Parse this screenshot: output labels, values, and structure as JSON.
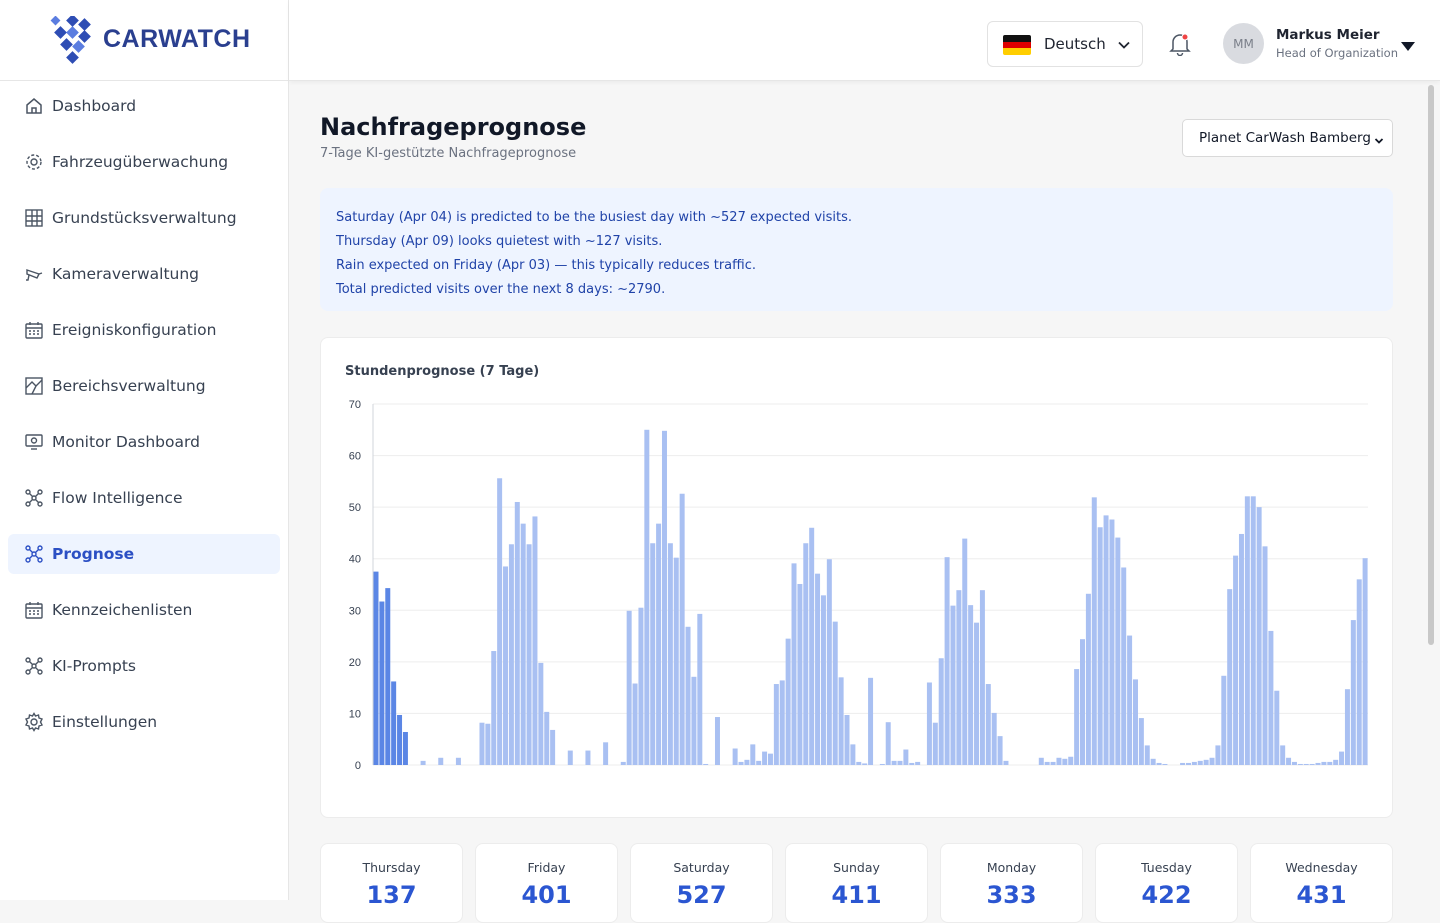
{
  "brand": {
    "name": "CARWATCH"
  },
  "sidebar": {
    "items": [
      {
        "label": "Dashboard",
        "icon": "home-icon"
      },
      {
        "label": "Fahrzeugüberwachung",
        "icon": "vehicle-monitor-icon"
      },
      {
        "label": "Grundstücksverwaltung",
        "icon": "property-grid-icon"
      },
      {
        "label": "Kameraverwaltung",
        "icon": "camera-icon"
      },
      {
        "label": "Ereigniskonfiguration",
        "icon": "calendar-icon"
      },
      {
        "label": "Bereichsverwaltung",
        "icon": "area-map-icon"
      },
      {
        "label": "Monitor Dashboard",
        "icon": "monitor-icon"
      },
      {
        "label": "Flow Intelligence",
        "icon": "network-icon"
      },
      {
        "label": "Prognose",
        "icon": "network-icon",
        "active": true
      },
      {
        "label": "Kennzeichenlisten",
        "icon": "calendar-icon"
      },
      {
        "label": "KI-Prompts",
        "icon": "network-icon"
      },
      {
        "label": "Einstellungen",
        "icon": "gear-icon"
      }
    ]
  },
  "header": {
    "language": "Deutsch",
    "user": {
      "initials": "MM",
      "name": "Markus Meier",
      "role": "Head of Organization"
    }
  },
  "page": {
    "title": "Nachfrageprognose",
    "subtitle": "7-Tage KI-gestützte Nachfrageprognose",
    "location": "Planet CarWash Bamberg"
  },
  "insights": [
    "Saturday (Apr 04) is predicted to be the busiest day with ~527 expected visits.",
    "Thursday (Apr 09) looks quietest with ~127 visits.",
    "Rain expected on Friday (Apr 03) — this typically reduces traffic.",
    "Total predicted visits over the next 8 days: ~2790."
  ],
  "colors": {
    "accent": "#2b56d1",
    "bar_past": "#5b86e5",
    "bar_forecast": "#a9c0f2"
  },
  "chart_data": {
    "type": "bar",
    "title": "Stundenprognose (7 Tage)",
    "ylim": [
      0,
      70
    ],
    "yticks": [
      0,
      10,
      20,
      30,
      40,
      50,
      60,
      70
    ],
    "highlighted_count": 6,
    "values": [
      37.5,
      31.7,
      34.3,
      16.2,
      9.7,
      6.4,
      0,
      0,
      0.8,
      0,
      0,
      1.4,
      0,
      0,
      1.4,
      0,
      0,
      0,
      8.2,
      8.0,
      22.1,
      55.6,
      38.5,
      42.8,
      51.0,
      46.8,
      42.8,
      48.2,
      19.8,
      10.3,
      6.8,
      0,
      0,
      2.8,
      0,
      0,
      2.8,
      0,
      0,
      4.4,
      0,
      0,
      0.6,
      29.9,
      15.8,
      30.5,
      65.0,
      43.0,
      46.8,
      64.8,
      43.0,
      40.2,
      52.6,
      26.8,
      17.1,
      29.3,
      0.2,
      0,
      9.3,
      0,
      0,
      3.2,
      0.6,
      1.0,
      4.0,
      0.8,
      2.6,
      2.2,
      15.7,
      16.4,
      24.5,
      39.1,
      35.1,
      43.0,
      46.0,
      37.1,
      32.9,
      39.9,
      27.8,
      17.0,
      9.7,
      4.0,
      0.6,
      0.3,
      16.9,
      0,
      0.2,
      8.3,
      0.8,
      0.8,
      3.0,
      0.4,
      0.6,
      0,
      16.0,
      8.2,
      20.7,
      40.3,
      30.9,
      33.9,
      43.9,
      31.0,
      27.6,
      33.9,
      15.7,
      10.1,
      5.6,
      0.8,
      0,
      0,
      0,
      0,
      0,
      1.4,
      0.6,
      0.6,
      1.4,
      1.2,
      1.6,
      18.6,
      24.4,
      33.2,
      51.9,
      46.1,
      48.4,
      47.6,
      44.1,
      38.3,
      25.1,
      16.6,
      9.1,
      3.8,
      1.2,
      0.4,
      0.2,
      0,
      0,
      0.4,
      0.4,
      0.6,
      0.8,
      1.0,
      1.4,
      3.8,
      17.3,
      34.1,
      40.6,
      44.8,
      52.1,
      52.1,
      50.0,
      42.4,
      26.0,
      14.4,
      3.8,
      1.4,
      0.6,
      0.2,
      0.2,
      0.2,
      0.4,
      0.6,
      0.6,
      1.0,
      2.6,
      14.7,
      28.1,
      36.0,
      40.1
    ]
  },
  "day_totals": [
    {
      "day": "Thursday",
      "value": "137"
    },
    {
      "day": "Friday",
      "value": "401"
    },
    {
      "day": "Saturday",
      "value": "527"
    },
    {
      "day": "Sunday",
      "value": "411"
    },
    {
      "day": "Monday",
      "value": "333"
    },
    {
      "day": "Tuesday",
      "value": "422"
    },
    {
      "day": "Wednesday",
      "value": "431"
    }
  ]
}
